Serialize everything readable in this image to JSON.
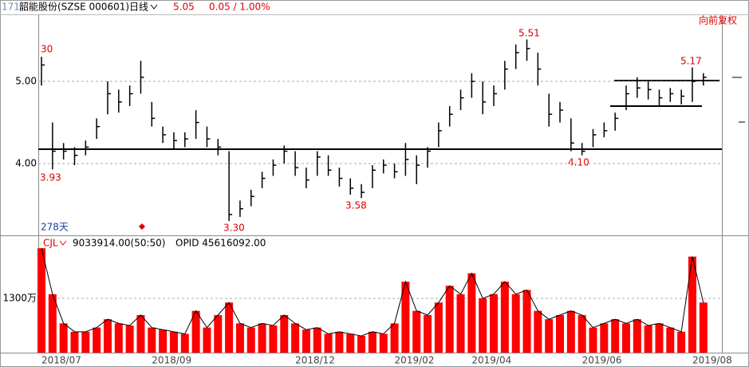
{
  "header": {
    "code": "171",
    "name": "韶能股份(SZSE 000601)",
    "period": "日线",
    "price": "5.05",
    "change": "0.05 / 1.00%",
    "adjust": "向前复权",
    "days": "278天"
  },
  "chart_data": {
    "type": "ohlc",
    "color": "#000000",
    "categories": [
      "2018/07",
      null,
      null,
      null,
      null,
      null,
      null,
      null,
      null,
      null,
      "2018/09",
      null,
      null,
      null,
      null,
      null,
      null,
      null,
      null,
      null,
      null,
      null,
      null,
      "2018/12",
      null,
      null,
      null,
      null,
      null,
      null,
      null,
      null,
      "2019/02",
      null,
      null,
      null,
      null,
      null,
      null,
      "2019/04",
      null,
      null,
      null,
      null,
      null,
      null,
      null,
      null,
      null,
      "2019/06",
      null,
      null,
      null,
      null,
      null,
      null,
      null,
      null,
      null,
      "2019/08",
      null
    ],
    "high": [
      5.3,
      4.5,
      4.25,
      4.2,
      4.28,
      4.55,
      5.0,
      4.9,
      4.95,
      5.25,
      4.75,
      4.45,
      4.38,
      4.38,
      4.65,
      4.45,
      4.3,
      4.15,
      3.55,
      3.68,
      3.9,
      4.05,
      4.22,
      4.15,
      3.95,
      4.15,
      4.1,
      3.95,
      3.82,
      3.75,
      3.98,
      4.05,
      4.0,
      4.25,
      4.1,
      4.2,
      4.5,
      4.7,
      4.9,
      5.1,
      5.0,
      4.95,
      5.25,
      5.45,
      5.51,
      5.35,
      4.85,
      4.75,
      4.55,
      4.25,
      4.42,
      4.5,
      4.62,
      4.95,
      5.05,
      5.0,
      4.9,
      4.92,
      4.9,
      5.17,
      5.1
    ],
    "low": [
      4.95,
      3.93,
      4.05,
      3.98,
      4.1,
      4.3,
      4.6,
      4.62,
      4.7,
      4.85,
      4.45,
      4.25,
      4.18,
      4.2,
      4.3,
      4.2,
      4.1,
      3.3,
      3.35,
      3.48,
      3.7,
      3.85,
      4.0,
      3.85,
      3.7,
      3.85,
      3.85,
      3.72,
      3.62,
      3.58,
      3.7,
      3.88,
      3.82,
      3.85,
      3.75,
      3.95,
      4.2,
      4.45,
      4.65,
      4.8,
      4.6,
      4.7,
      4.9,
      5.15,
      5.25,
      4.95,
      4.45,
      4.5,
      4.15,
      4.1,
      4.2,
      4.32,
      4.4,
      4.65,
      4.8,
      4.78,
      4.7,
      4.75,
      4.72,
      4.75,
      4.95
    ],
    "close": [
      5.2,
      4.15,
      4.15,
      4.1,
      4.2,
      4.45,
      4.85,
      4.75,
      4.85,
      5.05,
      4.55,
      4.35,
      4.28,
      4.3,
      4.5,
      4.3,
      4.2,
      3.38,
      3.45,
      3.6,
      3.82,
      3.98,
      4.15,
      3.95,
      3.8,
      4.08,
      3.92,
      3.82,
      3.7,
      3.65,
      3.92,
      3.98,
      3.9,
      4.05,
      3.98,
      4.15,
      4.4,
      4.6,
      4.8,
      5.0,
      4.75,
      4.85,
      5.15,
      5.35,
      5.4,
      5.15,
      4.6,
      4.65,
      4.25,
      4.15,
      4.35,
      4.4,
      4.55,
      4.85,
      4.92,
      4.9,
      4.8,
      4.85,
      4.82,
      5.0,
      5.05
    ],
    "ylim": [
      3.126,
      5.816
    ],
    "yticks": [
      {
        "value": 4,
        "label": "4.00"
      },
      {
        "value": 5,
        "label": "5.00"
      }
    ],
    "annotations": [
      "30",
      "3.93",
      "3.30",
      "3.58",
      "5.51",
      "4.10",
      "5.17"
    ],
    "volume": {
      "name": "CJL",
      "color": "#ff0000",
      "stats": "9033914.00(50:50)",
      "opid": "OPID 45616092.00",
      "values": [
        2500,
        1400,
        700,
        500,
        500,
        600,
        800,
        700,
        650,
        900,
        600,
        550,
        500,
        450,
        1000,
        600,
        900,
        1200,
        700,
        600,
        700,
        650,
        900,
        700,
        550,
        600,
        450,
        500,
        450,
        400,
        500,
        450,
        700,
        1700,
        1000,
        900,
        1200,
        1600,
        1400,
        1900,
        1300,
        1400,
        1700,
        1400,
        1500,
        1000,
        800,
        900,
        1000,
        900,
        600,
        700,
        800,
        700,
        800,
        650,
        700,
        600,
        500,
        2300,
        1200
      ],
      "ylim": [
        0,
        2770
      ],
      "yticks": [
        {
          "value": 1300,
          "label": "1300万"
        }
      ]
    }
  }
}
